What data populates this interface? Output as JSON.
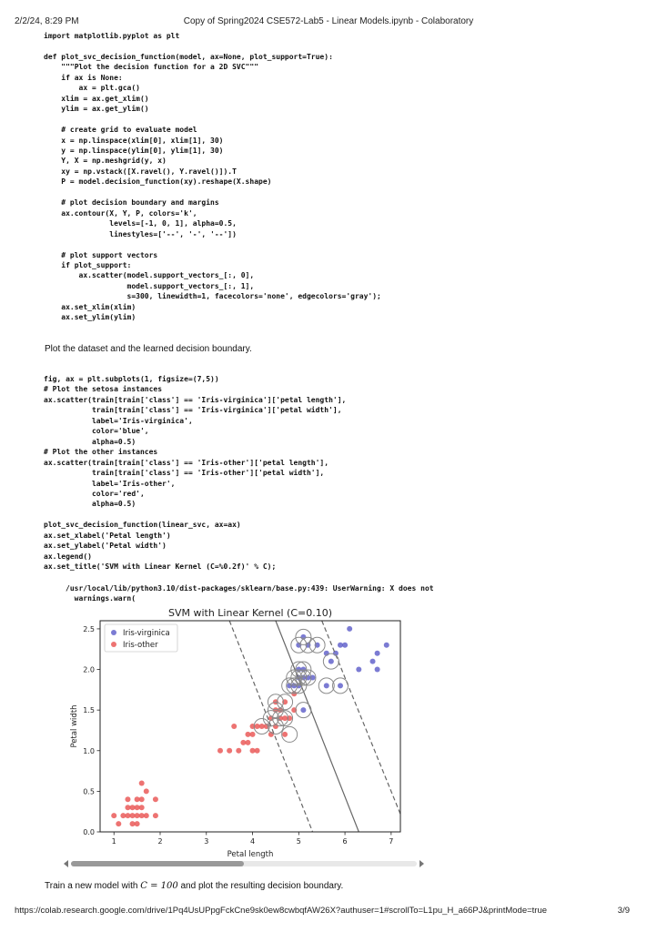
{
  "header": {
    "datetime": "2/2/24, 8:29 PM",
    "title": "Copy of Spring2024 CSE572-Lab5 - Linear Models.ipynb - Colaboratory"
  },
  "cells": {
    "code1": "import matplotlib.pyplot as plt\n\ndef plot_svc_decision_function(model, ax=None, plot_support=True):\n    \"\"\"Plot the decision function for a 2D SVC\"\"\"\n    if ax is None:\n        ax = plt.gca()\n    xlim = ax.get_xlim()\n    ylim = ax.get_ylim()\n\n    # create grid to evaluate model\n    x = np.linspace(xlim[0], xlim[1], 30)\n    y = np.linspace(ylim[0], ylim[1], 30)\n    Y, X = np.meshgrid(y, x)\n    xy = np.vstack([X.ravel(), Y.ravel()]).T\n    P = model.decision_function(xy).reshape(X.shape)\n\n    # plot decision boundary and margins\n    ax.contour(X, Y, P, colors='k',\n               levels=[-1, 0, 1], alpha=0.5,\n               linestyles=['--', '-', '--'])\n\n    # plot support vectors\n    if plot_support:\n        ax.scatter(model.support_vectors_[:, 0],\n                   model.support_vectors_[:, 1],\n                   s=300, linewidth=1, facecolors='none', edgecolors='gray');\n    ax.set_xlim(xlim)\n    ax.set_ylim(ylim)",
    "markdown1": "Plot the dataset and the learned decision boundary.",
    "code2": "fig, ax = plt.subplots(1, figsize=(7,5))\n# Plot the setosa instances\nax.scatter(train[train['class'] == 'Iris-virginica']['petal length'],\n           train[train['class'] == 'Iris-virginica']['petal width'],\n           label='Iris-virginica',\n           color='blue',\n           alpha=0.5)\n# Plot the other instances\nax.scatter(train[train['class'] == 'Iris-other']['petal length'],\n           train[train['class'] == 'Iris-other']['petal width'],\n           label='Iris-other',\n           color='red',\n           alpha=0.5)\n\nplot_svc_decision_function(linear_svc, ax=ax)\nax.set_xlabel('Petal length')\nax.set_ylabel('Petal width')\nax.legend()\nax.set_title('SVM with Linear Kernel (C=%0.2f)' % C);",
    "warning": "/usr/local/lib/python3.10/dist-packages/sklearn/base.py:439: UserWarning: X does not\n  warnings.warn(",
    "markdown2_prefix": "Train a new model with ",
    "markdown2_math": "C = 100",
    "markdown2_suffix": " and plot the resulting decision boundary."
  },
  "footer": {
    "url": "https://colab.research.google.com/drive/1Pq4UsUPpgFckCne9sk0ew8cwbqfAW26X?authuser=1#scrollTo=L1pu_H_a66PJ&printMode=true",
    "page": "3/9"
  },
  "scrollbar": {
    "thumb_fraction": 0.5
  },
  "chart_data": {
    "type": "scatter",
    "title": "SVM with Linear Kernel (C=0.10)",
    "xlabel": "Petal length",
    "ylabel": "Petal width",
    "xlim": [
      0.7,
      7.2
    ],
    "ylim": [
      0,
      2.6
    ],
    "xticks": [
      1,
      2,
      3,
      4,
      5,
      6,
      7
    ],
    "yticks": [
      0.0,
      0.5,
      1.0,
      1.5,
      2.0,
      2.5
    ],
    "legend_placement": "upper-left",
    "grid": false,
    "series": [
      {
        "name": "Iris-virginica",
        "color": "#5a5ac8",
        "points": [
          [
            5.1,
            2.4
          ],
          [
            5.0,
            2.3
          ],
          [
            5.2,
            2.3
          ],
          [
            5.4,
            2.3
          ],
          [
            5.6,
            2.2
          ],
          [
            5.8,
            2.2
          ],
          [
            5.7,
            2.1
          ],
          [
            5.9,
            2.3
          ],
          [
            6.1,
            2.5
          ],
          [
            5.6,
            1.8
          ],
          [
            5.1,
            1.9
          ],
          [
            5.0,
            2.0
          ],
          [
            4.9,
            1.8
          ],
          [
            5.1,
            1.5
          ],
          [
            5.0,
            1.9
          ],
          [
            5.2,
            1.9
          ],
          [
            5.3,
            1.9
          ],
          [
            5.0,
            1.8
          ],
          [
            5.9,
            1.8
          ],
          [
            6.0,
            2.3
          ],
          [
            6.3,
            2.0
          ],
          [
            6.6,
            2.1
          ],
          [
            6.7,
            2.2
          ],
          [
            6.9,
            2.3
          ],
          [
            6.7,
            2.0
          ],
          [
            4.8,
            1.8
          ],
          [
            5.1,
            2.0
          ]
        ]
      },
      {
        "name": "Iris-other",
        "color": "#e8504f",
        "points": [
          [
            1.0,
            0.2
          ],
          [
            1.2,
            0.2
          ],
          [
            1.3,
            0.2
          ],
          [
            1.4,
            0.2
          ],
          [
            1.5,
            0.2
          ],
          [
            1.6,
            0.2
          ],
          [
            1.7,
            0.2
          ],
          [
            1.9,
            0.2
          ],
          [
            1.4,
            0.3
          ],
          [
            1.5,
            0.3
          ],
          [
            1.3,
            0.3
          ],
          [
            1.6,
            0.3
          ],
          [
            1.3,
            0.4
          ],
          [
            1.5,
            0.4
          ],
          [
            1.6,
            0.4
          ],
          [
            1.9,
            0.4
          ],
          [
            1.7,
            0.5
          ],
          [
            1.6,
            0.6
          ],
          [
            1.5,
            0.1
          ],
          [
            1.4,
            0.1
          ],
          [
            1.1,
            0.1
          ],
          [
            3.3,
            1.0
          ],
          [
            3.5,
            1.0
          ],
          [
            3.7,
            1.0
          ],
          [
            3.9,
            1.1
          ],
          [
            4.0,
            1.0
          ],
          [
            4.1,
            1.0
          ],
          [
            3.6,
            1.3
          ],
          [
            3.8,
            1.1
          ],
          [
            4.0,
            1.2
          ],
          [
            4.0,
            1.3
          ],
          [
            4.2,
            1.3
          ],
          [
            4.4,
            1.4
          ],
          [
            4.5,
            1.5
          ],
          [
            4.6,
            1.5
          ],
          [
            4.6,
            1.4
          ],
          [
            4.7,
            1.4
          ],
          [
            4.7,
            1.6
          ],
          [
            4.8,
            1.4
          ],
          [
            4.9,
            1.5
          ],
          [
            4.5,
            1.3
          ],
          [
            4.3,
            1.3
          ],
          [
            4.7,
            1.2
          ],
          [
            4.9,
            1.7
          ],
          [
            4.5,
            1.6
          ],
          [
            4.4,
            1.2
          ],
          [
            3.9,
            1.2
          ],
          [
            4.1,
            1.3
          ]
        ]
      }
    ],
    "support_vectors": [
      [
        5.1,
        2.4
      ],
      [
        5.0,
        2.3
      ],
      [
        5.2,
        2.3
      ],
      [
        5.4,
        2.3
      ],
      [
        5.0,
        2.0
      ],
      [
        5.1,
        2.0
      ],
      [
        4.9,
        1.9
      ],
      [
        5.0,
        1.9
      ],
      [
        5.1,
        1.9
      ],
      [
        5.2,
        1.9
      ],
      [
        5.0,
        1.8
      ],
      [
        4.8,
        1.8
      ],
      [
        4.9,
        1.8
      ],
      [
        5.6,
        1.8
      ],
      [
        5.7,
        2.1
      ],
      [
        5.9,
        1.8
      ],
      [
        5.1,
        1.5
      ],
      [
        4.5,
        1.6
      ],
      [
        4.7,
        1.6
      ],
      [
        4.5,
        1.5
      ],
      [
        4.6,
        1.4
      ],
      [
        4.7,
        1.4
      ],
      [
        4.4,
        1.4
      ],
      [
        4.5,
        1.3
      ],
      [
        4.8,
        1.2
      ],
      [
        4.2,
        1.3
      ]
    ],
    "decision_lines": [
      {
        "style": "dashed",
        "p1": [
          3.5,
          2.6
        ],
        "p2": [
          5.3,
          0.0
        ]
      },
      {
        "style": "solid",
        "p1": [
          4.5,
          2.6
        ],
        "p2": [
          6.3,
          0.0
        ]
      },
      {
        "style": "dashed",
        "p1": [
          5.5,
          2.6
        ],
        "p2": [
          7.2,
          0.22
        ]
      }
    ]
  }
}
